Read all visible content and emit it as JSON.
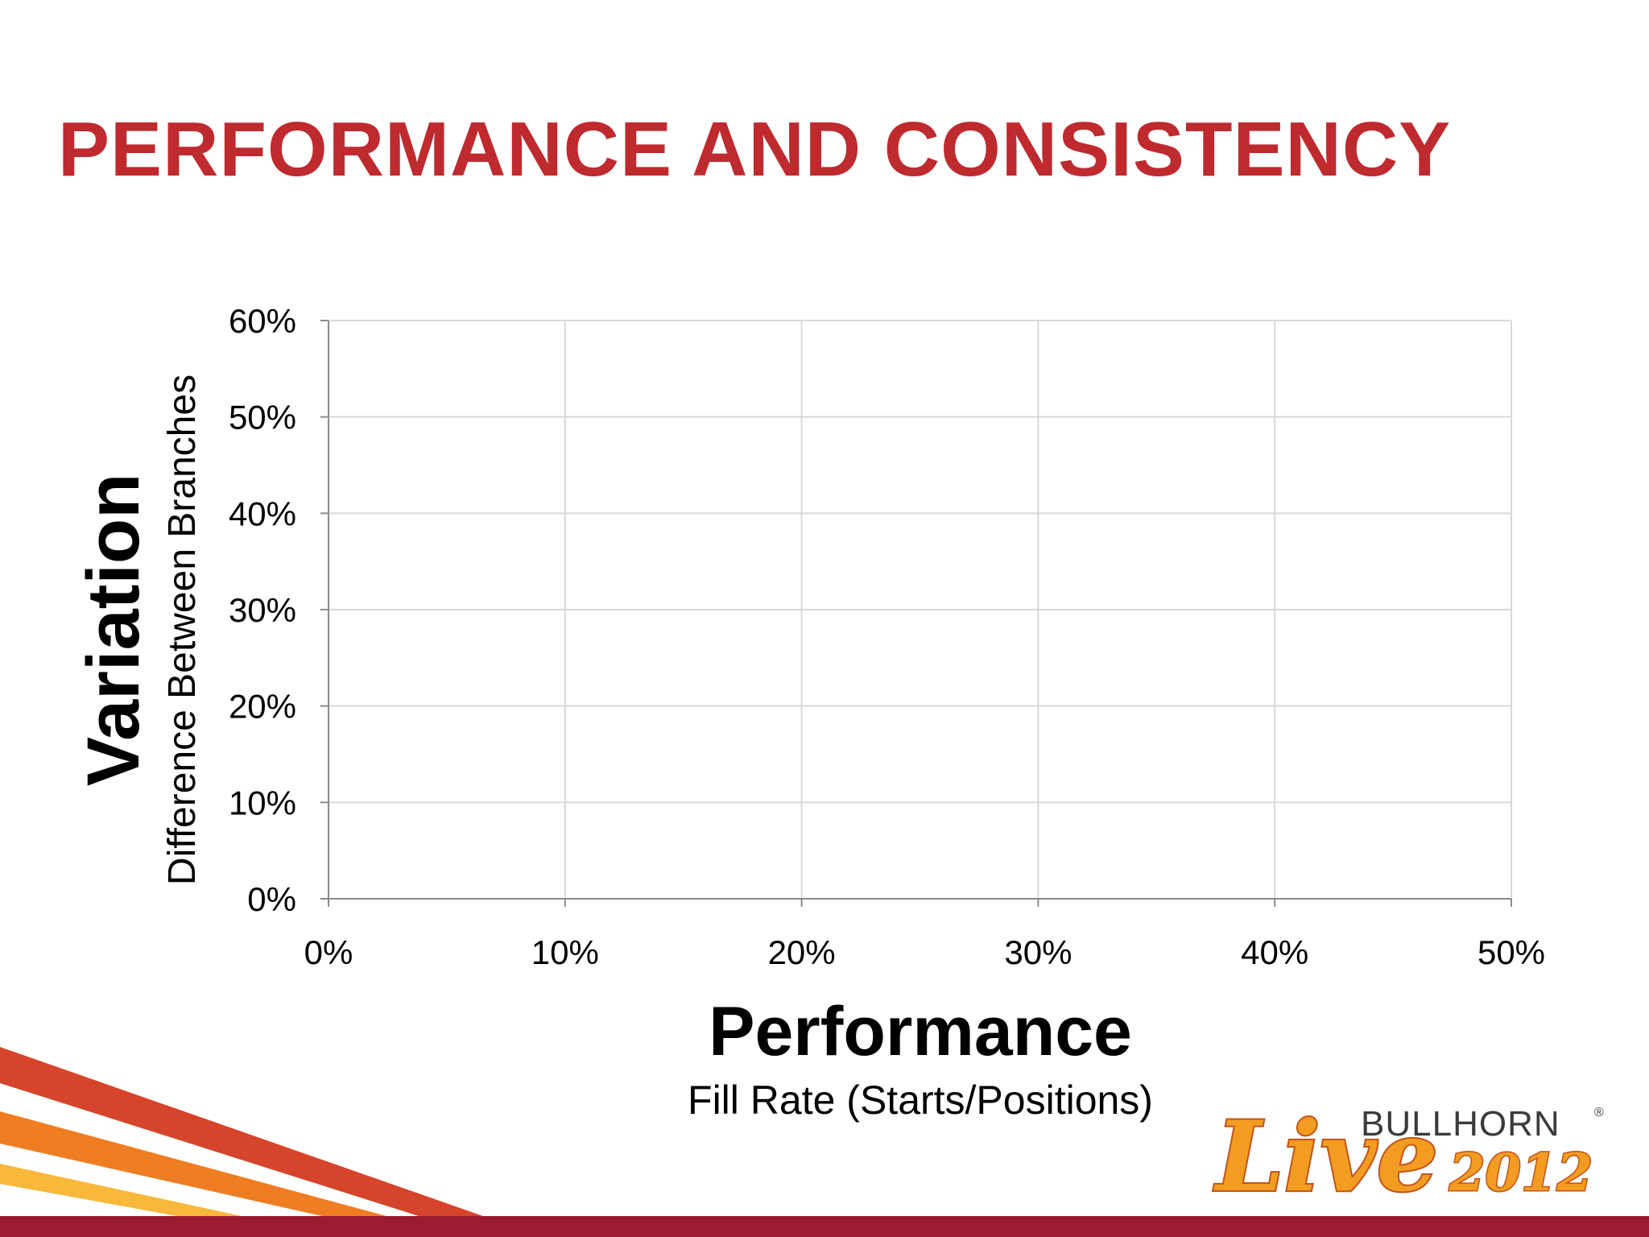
{
  "slide": {
    "title": "PERFORMANCE AND CONSISTENCY",
    "title_color": "#be2a2e"
  },
  "chart_data": {
    "type": "scatter",
    "title": "",
    "xlabel": "Performance",
    "xlabel_sub": "Fill Rate (Starts/Positions)",
    "ylabel": "Variation",
    "ylabel_sub": "Difference Between Branches",
    "xlim": [
      0,
      50
    ],
    "ylim": [
      0,
      60
    ],
    "x_ticks": [
      "0%",
      "10%",
      "20%",
      "30%",
      "40%",
      "50%"
    ],
    "y_ticks": [
      "0%",
      "10%",
      "20%",
      "30%",
      "40%",
      "50%",
      "60%"
    ],
    "grid": true,
    "series": []
  },
  "logo": {
    "brand": "BULLHORN",
    "registered": "®",
    "event": "Live",
    "year": "2012",
    "colors": {
      "orange": "#f39c22",
      "outline": "#c2541a",
      "brand_text": "#3b3b3b"
    }
  },
  "colors": {
    "stripe_red": "#d6452b",
    "stripe_orange": "#ef7d22",
    "stripe_yellow": "#f8b83a",
    "bottom_bar": "#9b1b30",
    "grid": "#d9d9d9",
    "axis": "#8c8c8c"
  }
}
